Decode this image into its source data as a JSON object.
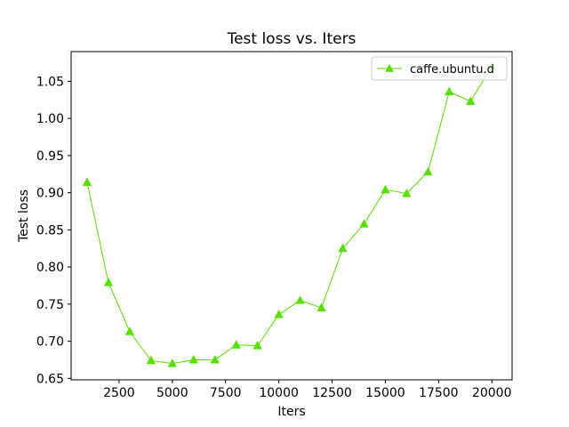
{
  "chart_data": {
    "type": "line",
    "title": "Test loss  vs. Iters",
    "xlabel": "Iters",
    "ylabel": "Test loss",
    "xlim": [
      250,
      20950
    ],
    "ylim": [
      0.648,
      1.09
    ],
    "grid": false,
    "legend_placement": "top-right",
    "x_ticks": [
      2500,
      5000,
      7500,
      10000,
      12500,
      15000,
      17500,
      20000
    ],
    "x_tick_labels": [
      "2500",
      "5000",
      "7500",
      "10000",
      "12500",
      "15000",
      "17500",
      "20000"
    ],
    "y_ticks": [
      0.65,
      0.7,
      0.75,
      0.8,
      0.85,
      0.9,
      0.95,
      1.0,
      1.05
    ],
    "y_tick_labels": [
      "0.65",
      "0.70",
      "0.75",
      "0.80",
      "0.85",
      "0.90",
      "0.95",
      "1.00",
      "1.05"
    ],
    "series": [
      {
        "name": "caffe.ubuntu.d",
        "color": "#55e000",
        "marker": "triangle-up",
        "x": [
          1000,
          2000,
          3000,
          4000,
          5000,
          6000,
          7000,
          8000,
          9000,
          10000,
          11000,
          12000,
          13000,
          14000,
          15000,
          16000,
          17000,
          18000,
          19000,
          20000
        ],
        "y": [
          0.914,
          0.779,
          0.713,
          0.674,
          0.67,
          0.675,
          0.675,
          0.695,
          0.694,
          0.736,
          0.755,
          0.745,
          0.825,
          0.858,
          0.904,
          0.899,
          0.928,
          1.036,
          1.023,
          1.07
        ]
      }
    ]
  }
}
